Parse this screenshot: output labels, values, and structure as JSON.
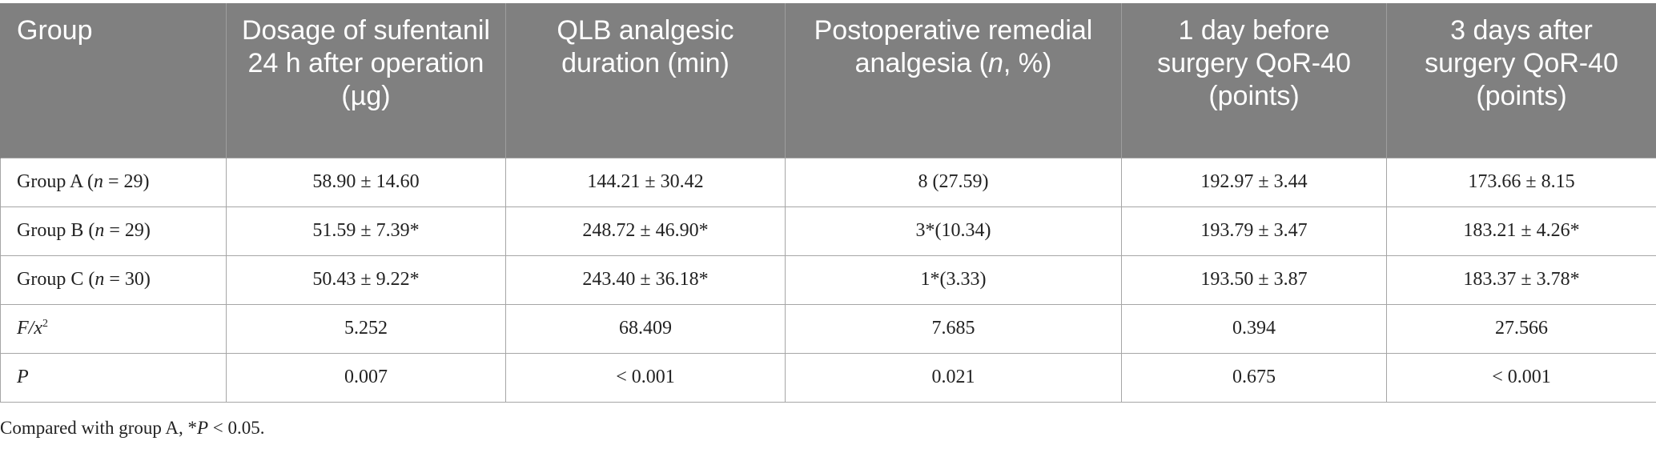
{
  "table": {
    "headers": {
      "group": "Group",
      "sufentanil": "Dosage of sufentanil 24 h after operation (µg)",
      "qlb": "QLB analgesic duration (min)",
      "remedial_pre": "Postoperative remedial analgesia (",
      "remedial_n": "n",
      "remedial_post": ", %)",
      "qor_before": "1 day before surgery QoR-40 (points)",
      "qor_after": "3 days after surgery QoR-40 (points)"
    },
    "rows": [
      {
        "label_pre": "Group A (",
        "label_n": "n",
        "label_post": " = 29)",
        "values": [
          "58.90 ± 14.60",
          "144.21 ± 30.42",
          "8 (27.59)",
          "192.97 ± 3.44",
          "173.66 ± 8.15"
        ]
      },
      {
        "label_pre": "Group B (",
        "label_n": "n",
        "label_post": " = 29)",
        "values": [
          "51.59 ± 7.39*",
          "248.72 ± 46.90*",
          "3*(10.34)",
          "193.79 ± 3.47",
          "183.21 ± 4.26*"
        ]
      },
      {
        "label_pre": "Group C (",
        "label_n": "n",
        "label_post": " = 30)",
        "values": [
          "50.43 ± 9.22*",
          "243.40 ± 36.18*",
          "1*(3.33)",
          "193.50 ± 3.87",
          "183.37 ± 3.78*"
        ]
      }
    ],
    "stat_rows": [
      {
        "label_main": "F/x",
        "label_sup": "2",
        "values": [
          "5.252",
          "68.409",
          "7.685",
          "0.394",
          "27.566"
        ]
      },
      {
        "label_main": "P",
        "values": [
          "0.007",
          "< 0.001",
          "0.021",
          "0.675",
          "< 0.001"
        ]
      }
    ]
  },
  "footnote": {
    "pre": "Compared with group A, *",
    "italic": "P",
    "post": " < 0.05."
  }
}
